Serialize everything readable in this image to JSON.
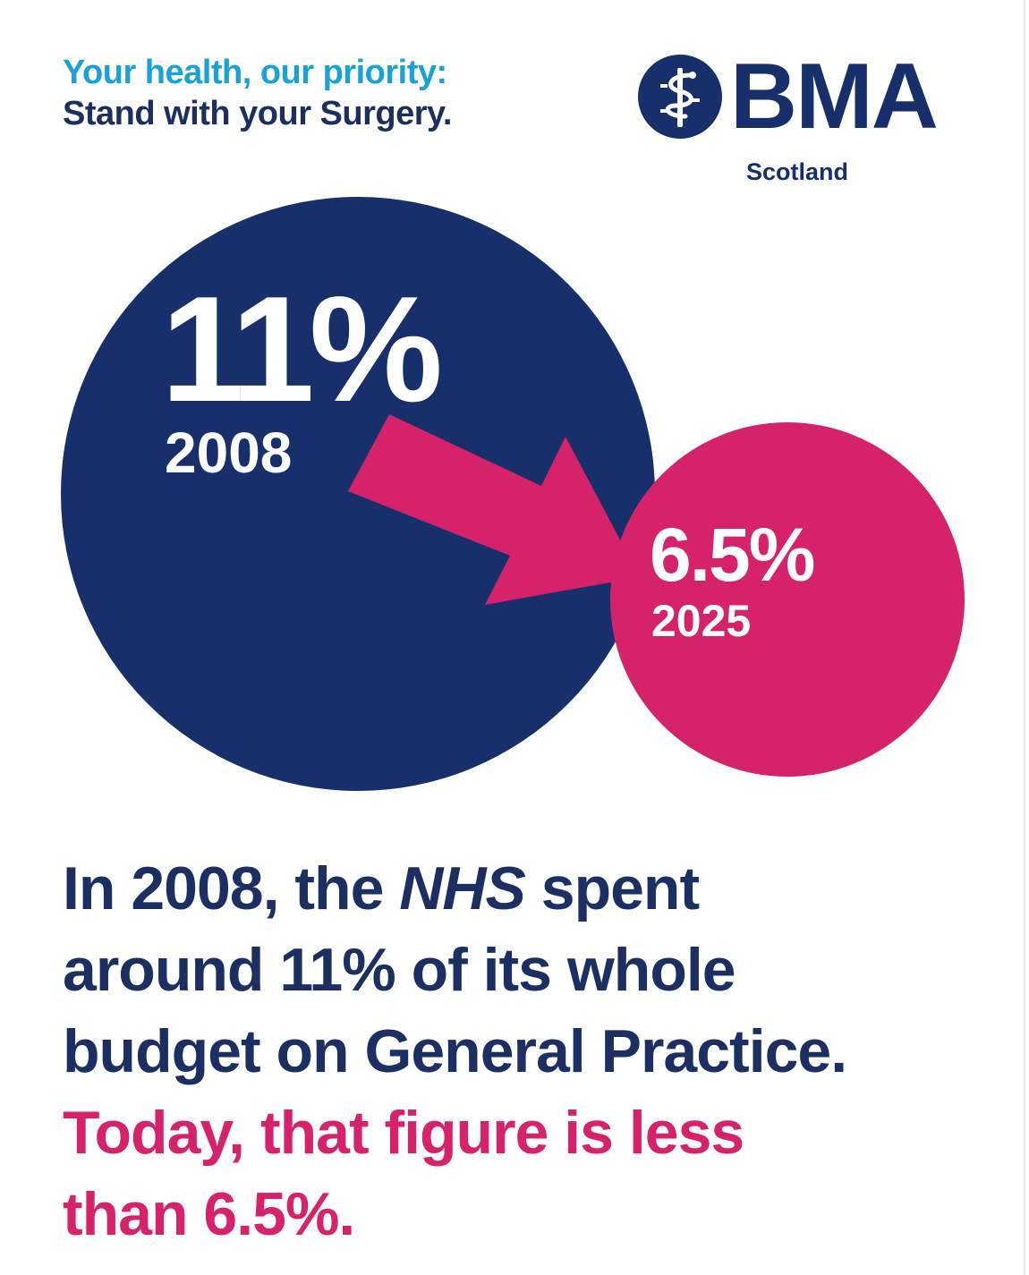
{
  "tagline": {
    "line1": "Your health, our priority:",
    "line2": "Stand with your Surgery."
  },
  "logo": {
    "wordmark": "BMA",
    "region": "Scotland",
    "icon": "rod-of-asclepius-icon"
  },
  "stats": {
    "before": {
      "value": "11%",
      "year": "2008"
    },
    "after": {
      "value": "6.5%",
      "year": "2025"
    }
  },
  "statement": {
    "l1_a": "In 2008, the ",
    "l1_b": "NHS",
    "l1_c": " spent",
    "l2": "around 11% of its whole",
    "l3": "budget on General Practice.",
    "l4": "Today, that figure is less",
    "l5": "than 6.5%."
  },
  "colors": {
    "navy": "#172f6b",
    "pink": "#d6226a",
    "cyan": "#1aa1d8",
    "white": "#ffffff"
  }
}
